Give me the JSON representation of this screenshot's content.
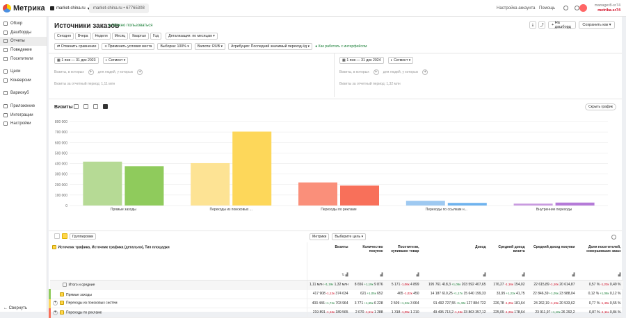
{
  "app": {
    "name": "Метрика"
  },
  "header": {
    "site": "market-shina.ru",
    "breadcrumb": "market-shina.ru • 67765308",
    "links": [
      "Настройка аккаунта",
      "Помощь"
    ],
    "user_name": "manager8-sr74",
    "user_site": "metrika-sr74"
  },
  "sidebar": {
    "items": [
      {
        "label": "Обзор",
        "icon": "overview-icon"
      },
      {
        "label": "Дашборды",
        "icon": "dashboard-icon"
      },
      {
        "label": "Отчеты",
        "icon": "reports-icon",
        "active": true
      },
      {
        "label": "Поведение",
        "icon": "behavior-icon"
      },
      {
        "label": "Посетители",
        "icon": "visitors-icon"
      },
      {
        "label": "Цели",
        "icon": "goals-icon"
      },
      {
        "label": "Конверсии",
        "icon": "conversions-icon"
      },
      {
        "label": "Вариокуб",
        "icon": "variocube-icon"
      },
      {
        "label": "Приложение",
        "icon": "app-icon"
      },
      {
        "label": "Интеграции",
        "icon": "integrations-icon"
      },
      {
        "label": "Настройки",
        "icon": "settings-icon"
      }
    ],
    "collapse": "Свернуть"
  },
  "page": {
    "title": "Источники заказов",
    "status": "Можно пользоваться",
    "toolbar": {
      "dashboard": "На дашборд",
      "save_as": "Сохранить как"
    },
    "periods": [
      "Сегодня",
      "Вчера",
      "Неделя",
      "Месяц",
      "Квартал",
      "Год"
    ],
    "detail": "Детализация: по месяцам",
    "filters": [
      "Отменить сравнение",
      "Применить условия места",
      "Выборка: 100%",
      "Валюта: RUB",
      "Атрибуция: Последний значимый переход  ёд"
    ],
    "interface_hint": "Как работать с интерфейсом"
  },
  "compare": {
    "left": {
      "date": "1 янв — 31 дек 2023",
      "segment": "Сегмент",
      "sub_a": "Визиты, в которых",
      "sub_b": "для людей, у которых",
      "note": "Визиты за отчетный период: 1,11 млн"
    },
    "right": {
      "date": "1 янв — 31 дек 2024",
      "segment": "Сегмент",
      "sub_a": "Визиты, в которых",
      "sub_b": "для людей, у которых",
      "note": "Визиты за отчетный период: 1,32 млн"
    }
  },
  "chart_header": {
    "title": "Визиты",
    "hide": "Скрыть график"
  },
  "chart_data": {
    "type": "bar",
    "categories": [
      "Прямые заходы",
      "Переходы из поисковых ...",
      "Переходы по рекламе",
      "Переходы по ссылкам н...",
      "Внутренние переходы"
    ],
    "series": [
      {
        "values": [
          417908,
          403446,
          219891,
          45000,
          18000
        ],
        "color": "#a7d48a"
      },
      {
        "values": [
          374634,
          703964,
          189565,
          25000,
          28000
        ],
        "color": "#8fca5a"
      }
    ],
    "series_colors": [
      [
        "#b6da95",
        "#8fcb5c"
      ],
      [
        "#fde394",
        "#fdd75a"
      ],
      [
        "#fa8f7a",
        "#f8705a"
      ],
      [
        "#9ec9f1",
        "#6fb3ee"
      ],
      [
        "#c99be0",
        "#b57bd8"
      ]
    ],
    "ylim": [
      0,
      800000
    ],
    "yticks": [
      "0",
      "100 000",
      "200 000",
      "300 000",
      "400 000",
      "500 000",
      "600 000",
      "700 000",
      "800 000"
    ]
  },
  "table_controls": {
    "grouping": "Группировки",
    "metrics": "Метрики",
    "goal": "Выберите цель"
  },
  "table": {
    "headers": [
      "Источник трафика, Источник трафика (детально), Тип площадки",
      "Визиты",
      "Количество покупок",
      "Посетители, купившие товар",
      "Доход",
      "Средний доход визита",
      "Средний доход покупки",
      "Доля посетителей, совершивших заказ"
    ],
    "rows": [
      {
        "name": "Итого и средние",
        "cells": [
          [
            "1,11 млн",
            "+1,19к",
            "1,32 млн"
          ],
          [
            "8 656",
            "+1,19к",
            "9 876"
          ],
          [
            "5 171",
            "-1,06к",
            "4 899"
          ],
          [
            "195 761 418,3",
            "+1,06к",
            "203 592 407,65"
          ],
          [
            "176,27",
            "-1,16к",
            "154,02"
          ],
          [
            "22 615,89",
            "-1,10к",
            "20 614,87"
          ],
          [
            "0,57 %",
            "-1,23к",
            "0,49 %"
          ]
        ]
      },
      {
        "name": "Прямые заходы",
        "cells": [
          [
            "417 908",
            "-1,12к",
            "374 634"
          ],
          [
            "621",
            "+1,05к",
            "652"
          ],
          [
            "465",
            "-1,02к",
            "450"
          ],
          [
            "14 187 610,25",
            "+1,17к",
            "15 640 199,33"
          ],
          [
            "33,95",
            "+1,23к",
            "41,75"
          ],
          [
            "22 846,39",
            "+1,05к",
            "23 988,04"
          ],
          [
            "0,12 %",
            "+1,08к",
            "0,12 %"
          ]
        ]
      },
      {
        "name": "Переходы из поисковых систем",
        "cells": [
          [
            "403 446",
            "+1,74к",
            "703 964"
          ],
          [
            "3 771",
            "+1,65к",
            "6 228"
          ],
          [
            "2 509",
            "+1,22к",
            "3 064"
          ],
          [
            "91 492 727,55",
            "+1,40к",
            "127 884 722"
          ],
          [
            "226,78",
            "-1,25к",
            "181,64"
          ],
          [
            "24 262,19",
            "-1,19к",
            "20 533,62"
          ],
          [
            "0,77 %",
            "-1,40к",
            "0,55 %"
          ]
        ]
      },
      {
        "name": "Переходы по рекламе",
        "cells": [
          [
            "219 891",
            "-1,16к",
            "189 565"
          ],
          [
            "2 070",
            "-1,61к",
            "1 288"
          ],
          [
            "1 318",
            "-1,09к",
            "1 210"
          ],
          [
            "49 495 713,2",
            "-1,46к",
            "33 863 357,12"
          ],
          [
            "225,09",
            "-1,26к",
            "178,64"
          ],
          [
            "23 911,97",
            "+1,10к",
            "26 292,2"
          ],
          [
            "0,87 %",
            "-1,11к",
            "0,84 %"
          ]
        ]
      }
    ]
  }
}
